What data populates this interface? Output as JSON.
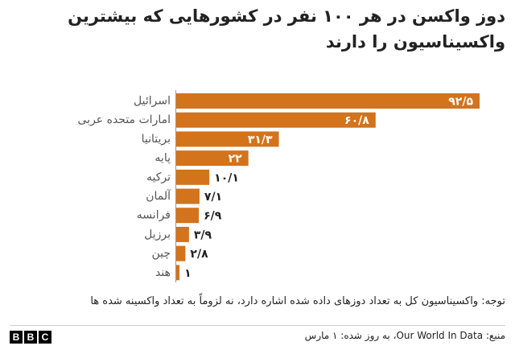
{
  "chart_data": {
    "type": "bar",
    "orientation": "horizontal",
    "title": "دوز واکسن در هر ۱۰۰ نفر در کشورهایی که بیشترین واکسیناسیون را دارند",
    "categories": [
      "اسرائیل",
      "امارات متحده عربی",
      "بریتانیا",
      "پایه",
      "ترکیه",
      "آلمان",
      "فرانسه",
      "برزیل",
      "چین",
      "هند"
    ],
    "values": [
      92.5,
      60.8,
      31.3,
      22,
      10.1,
      7.1,
      6.9,
      3.9,
      2.8,
      1
    ],
    "value_labels": [
      "۹۲/۵",
      "۶۰/۸",
      "۳۱/۳",
      "۲۲",
      "۱۰/۱",
      "۷/۱",
      "۶/۹",
      "۳/۹",
      "۲/۸",
      "۱"
    ],
    "color": "#d3731c",
    "note": "توجه: واکسیناسیون کل به تعداد دوزهای داده شده اشاره دارد، نه لزوماً به تعداد واکسینه شده ها",
    "source": "منبع: Our World In Data، به روز شده: ۱ مارس"
  },
  "logo": [
    "B",
    "B",
    "C"
  ]
}
